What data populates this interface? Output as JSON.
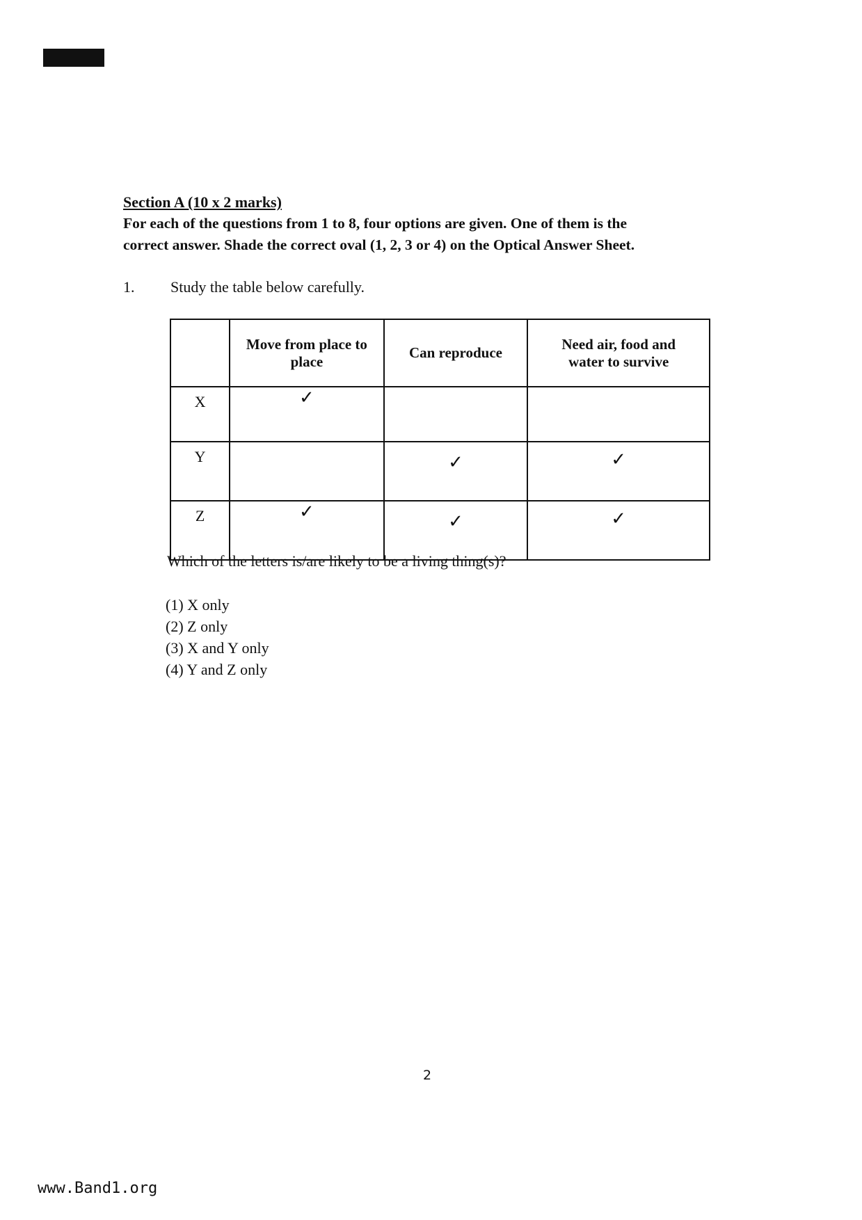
{
  "section_title": "Section A (10 x 2 marks)",
  "instructions": [
    "For each of the questions from 1 to 8, four options are given. One of them is the",
    "correct answer. Shade the correct oval (1, 2, 3 or 4) on the Optical Answer Sheet."
  ],
  "question": {
    "number": "1.",
    "intro": "Study the table below carefully.",
    "table": {
      "headers": [
        "",
        "Move from place to place",
        "Can reproduce",
        "Need air, food and water to survive"
      ],
      "rows": [
        {
          "label": "X",
          "cells": [
            "✓",
            "",
            ""
          ]
        },
        {
          "label": "Y",
          "cells": [
            "",
            "✓",
            "✓"
          ]
        },
        {
          "label": "Z",
          "cells": [
            "✓",
            "✓",
            "✓"
          ]
        }
      ]
    },
    "prompt": "Which of the letters is/are likely to be a living thing(s)?",
    "options": [
      "(1) X only",
      "(2) Z only",
      "(3) X and Y only",
      "(4) Y and Z only"
    ]
  },
  "page_number": "2",
  "footer": "www.Band1.org"
}
